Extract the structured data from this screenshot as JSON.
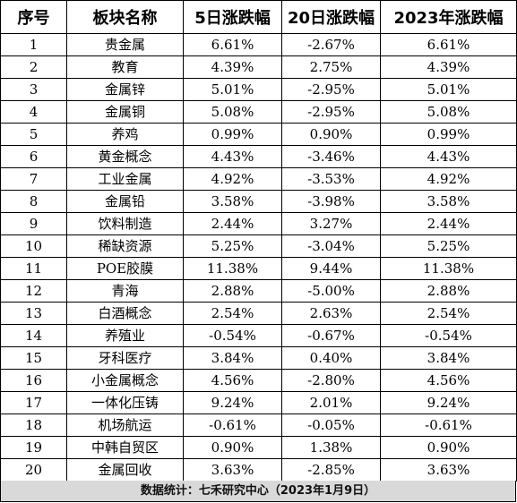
{
  "table": {
    "headers": [
      "序号",
      "板块名称",
      "5日涨跌幅",
      "20日涨跌幅",
      "2023年涨跌幅"
    ],
    "rows": [
      [
        "1",
        "贵金属",
        "6.61%",
        "-2.67%",
        "6.61%"
      ],
      [
        "2",
        "教育",
        "4.39%",
        "2.75%",
        "4.39%"
      ],
      [
        "3",
        "金属锌",
        "5.01%",
        "-2.95%",
        "5.01%"
      ],
      [
        "4",
        "金属铜",
        "5.08%",
        "-2.95%",
        "5.08%"
      ],
      [
        "5",
        "养鸡",
        "0.99%",
        "0.90%",
        "0.99%"
      ],
      [
        "6",
        "黄金概念",
        "4.43%",
        "-3.46%",
        "4.43%"
      ],
      [
        "7",
        "工业金属",
        "4.92%",
        "-3.53%",
        "4.92%"
      ],
      [
        "8",
        "金属铅",
        "3.58%",
        "-3.98%",
        "3.58%"
      ],
      [
        "9",
        "饮料制造",
        "2.44%",
        "3.27%",
        "2.44%"
      ],
      [
        "10",
        "稀缺资源",
        "5.25%",
        "-3.04%",
        "5.25%"
      ],
      [
        "11",
        "POE胶膜",
        "11.38%",
        "9.44%",
        "11.38%"
      ],
      [
        "12",
        "青海",
        "2.88%",
        "-5.00%",
        "2.88%"
      ],
      [
        "13",
        "白酒概念",
        "2.54%",
        "2.63%",
        "2.54%"
      ],
      [
        "14",
        "养殖业",
        "-0.54%",
        "-0.67%",
        "-0.54%"
      ],
      [
        "15",
        "牙科医疗",
        "3.84%",
        "0.40%",
        "3.84%"
      ],
      [
        "16",
        "小金属概念",
        "4.56%",
        "-2.80%",
        "4.56%"
      ],
      [
        "17",
        "一体化压铸",
        "9.24%",
        "2.01%",
        "9.24%"
      ],
      [
        "18",
        "机场航运",
        "-0.61%",
        "-0.05%",
        "-0.61%"
      ],
      [
        "19",
        "中韩自贸区",
        "0.90%",
        "1.38%",
        "0.90%"
      ],
      [
        "20",
        "金属回收",
        "3.63%",
        "-2.85%",
        "3.63%"
      ]
    ]
  },
  "footer": {
    "text": "数据统计：七禾研究中心（2023年1月9日）"
  }
}
